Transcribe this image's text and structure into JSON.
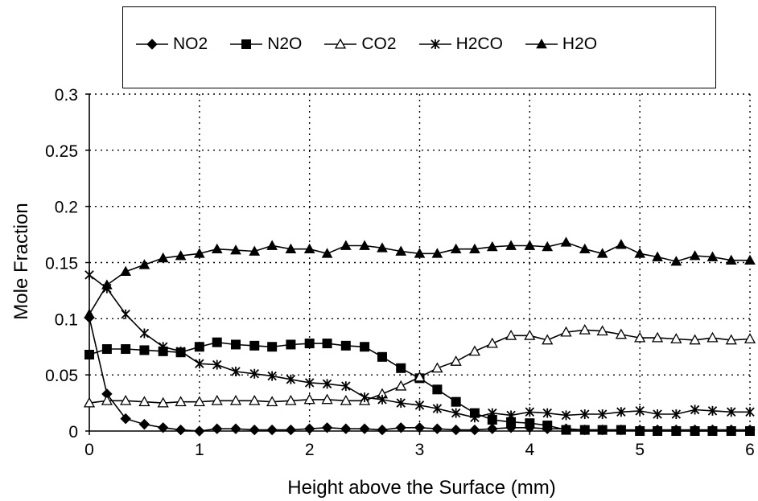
{
  "chart_data": {
    "type": "line",
    "title": "",
    "xlabel": "Height above the Surface (mm)",
    "ylabel": "Mole Fraction",
    "xlim": [
      0,
      6
    ],
    "ylim": [
      0,
      0.3
    ],
    "xticks": [
      "0",
      "1",
      "2",
      "3",
      "4",
      "5",
      "6"
    ],
    "yticks": [
      "0",
      "0.05",
      "0.1",
      "0.15",
      "0.2",
      "0.25",
      "0.3"
    ],
    "grid": true,
    "legend_position": "top",
    "series": [
      {
        "name": "NO2",
        "marker": "diamond-filled",
        "x": [
          0,
          0.16,
          0.33,
          0.5,
          0.67,
          0.83,
          1.0,
          1.16,
          1.33,
          1.5,
          1.66,
          1.83,
          2.0,
          2.16,
          2.33,
          2.5,
          2.66,
          2.83,
          3.0,
          3.16,
          3.33,
          3.5,
          3.66,
          3.83,
          4.0,
          4.16,
          4.33,
          4.5,
          4.66,
          4.83,
          5.0,
          5.16,
          5.33,
          5.5,
          5.66,
          5.83,
          6.0
        ],
        "y": [
          0.101,
          0.033,
          0.011,
          0.006,
          0.003,
          0.001,
          0.0,
          0.002,
          0.002,
          0.001,
          0.001,
          0.001,
          0.002,
          0.003,
          0.002,
          0.002,
          0.001,
          0.003,
          0.003,
          0.002,
          0.001,
          0.001,
          0.002,
          0.003,
          0.003,
          0.002,
          0.002,
          0.001,
          0.001,
          0.001,
          0.001,
          0.001,
          0.001,
          0.001,
          0.001,
          0.001,
          0.001
        ]
      },
      {
        "name": "N2O",
        "marker": "square-filled",
        "x": [
          0,
          0.16,
          0.33,
          0.5,
          0.67,
          0.83,
          1.0,
          1.16,
          1.33,
          1.5,
          1.66,
          1.83,
          2.0,
          2.16,
          2.33,
          2.5,
          2.66,
          2.83,
          3.0,
          3.16,
          3.33,
          3.5,
          3.66,
          3.83,
          4.0,
          4.16,
          4.33,
          4.5,
          4.66,
          4.83,
          5.0,
          5.16,
          5.33,
          5.5,
          5.66,
          5.83,
          6.0
        ],
        "y": [
          0.068,
          0.073,
          0.073,
          0.072,
          0.071,
          0.07,
          0.075,
          0.079,
          0.077,
          0.076,
          0.075,
          0.077,
          0.078,
          0.078,
          0.076,
          0.075,
          0.066,
          0.056,
          0.047,
          0.037,
          0.026,
          0.016,
          0.01,
          0.008,
          0.007,
          0.005,
          0.001,
          0.001,
          0.001,
          0.001,
          0.0,
          0.0,
          0.0,
          0.0,
          0.0,
          0.0,
          0.0
        ]
      },
      {
        "name": "CO2",
        "marker": "triangle-open",
        "x": [
          0,
          0.16,
          0.33,
          0.5,
          0.67,
          0.83,
          1.0,
          1.16,
          1.33,
          1.5,
          1.66,
          1.83,
          2.0,
          2.16,
          2.33,
          2.5,
          2.66,
          2.83,
          3.0,
          3.16,
          3.33,
          3.5,
          3.66,
          3.83,
          4.0,
          4.16,
          4.33,
          4.5,
          4.66,
          4.83,
          5.0,
          5.16,
          5.33,
          5.5,
          5.66,
          5.83,
          6.0
        ],
        "y": [
          0.025,
          0.027,
          0.027,
          0.026,
          0.025,
          0.026,
          0.026,
          0.027,
          0.027,
          0.027,
          0.026,
          0.027,
          0.028,
          0.028,
          0.027,
          0.027,
          0.033,
          0.04,
          0.048,
          0.056,
          0.062,
          0.071,
          0.078,
          0.085,
          0.085,
          0.081,
          0.088,
          0.09,
          0.089,
          0.086,
          0.083,
          0.083,
          0.082,
          0.081,
          0.083,
          0.081,
          0.082
        ]
      },
      {
        "name": "H2CO",
        "marker": "asterisk",
        "x": [
          0,
          0.16,
          0.33,
          0.5,
          0.67,
          0.83,
          1.0,
          1.16,
          1.33,
          1.5,
          1.66,
          1.83,
          2.0,
          2.16,
          2.33,
          2.5,
          2.66,
          2.83,
          3.0,
          3.16,
          3.33,
          3.5,
          3.66,
          3.83,
          4.0,
          4.16,
          4.33,
          4.5,
          4.66,
          4.83,
          5.0,
          5.16,
          5.33,
          5.5,
          5.66,
          5.83,
          6.0
        ],
        "y": [
          0.139,
          0.127,
          0.104,
          0.087,
          0.075,
          0.071,
          0.06,
          0.059,
          0.053,
          0.051,
          0.049,
          0.046,
          0.043,
          0.042,
          0.04,
          0.03,
          0.028,
          0.025,
          0.023,
          0.02,
          0.016,
          0.012,
          0.016,
          0.014,
          0.017,
          0.016,
          0.014,
          0.015,
          0.015,
          0.017,
          0.018,
          0.015,
          0.015,
          0.019,
          0.018,
          0.017,
          0.017
        ]
      },
      {
        "name": "H2O",
        "marker": "triangle-filled",
        "x": [
          0,
          0.16,
          0.33,
          0.5,
          0.67,
          0.83,
          1.0,
          1.16,
          1.33,
          1.5,
          1.66,
          1.83,
          2.0,
          2.16,
          2.33,
          2.5,
          2.66,
          2.83,
          3.0,
          3.16,
          3.33,
          3.5,
          3.66,
          3.83,
          4.0,
          4.16,
          4.33,
          4.5,
          4.66,
          4.83,
          5.0,
          5.16,
          5.33,
          5.5,
          5.66,
          5.83,
          6.0
        ],
        "y": [
          0.104,
          0.13,
          0.142,
          0.148,
          0.154,
          0.156,
          0.158,
          0.162,
          0.161,
          0.16,
          0.165,
          0.162,
          0.162,
          0.158,
          0.165,
          0.165,
          0.163,
          0.16,
          0.158,
          0.158,
          0.162,
          0.162,
          0.164,
          0.165,
          0.165,
          0.164,
          0.168,
          0.162,
          0.158,
          0.166,
          0.158,
          0.155,
          0.151,
          0.156,
          0.155,
          0.152,
          0.152
        ]
      }
    ]
  }
}
